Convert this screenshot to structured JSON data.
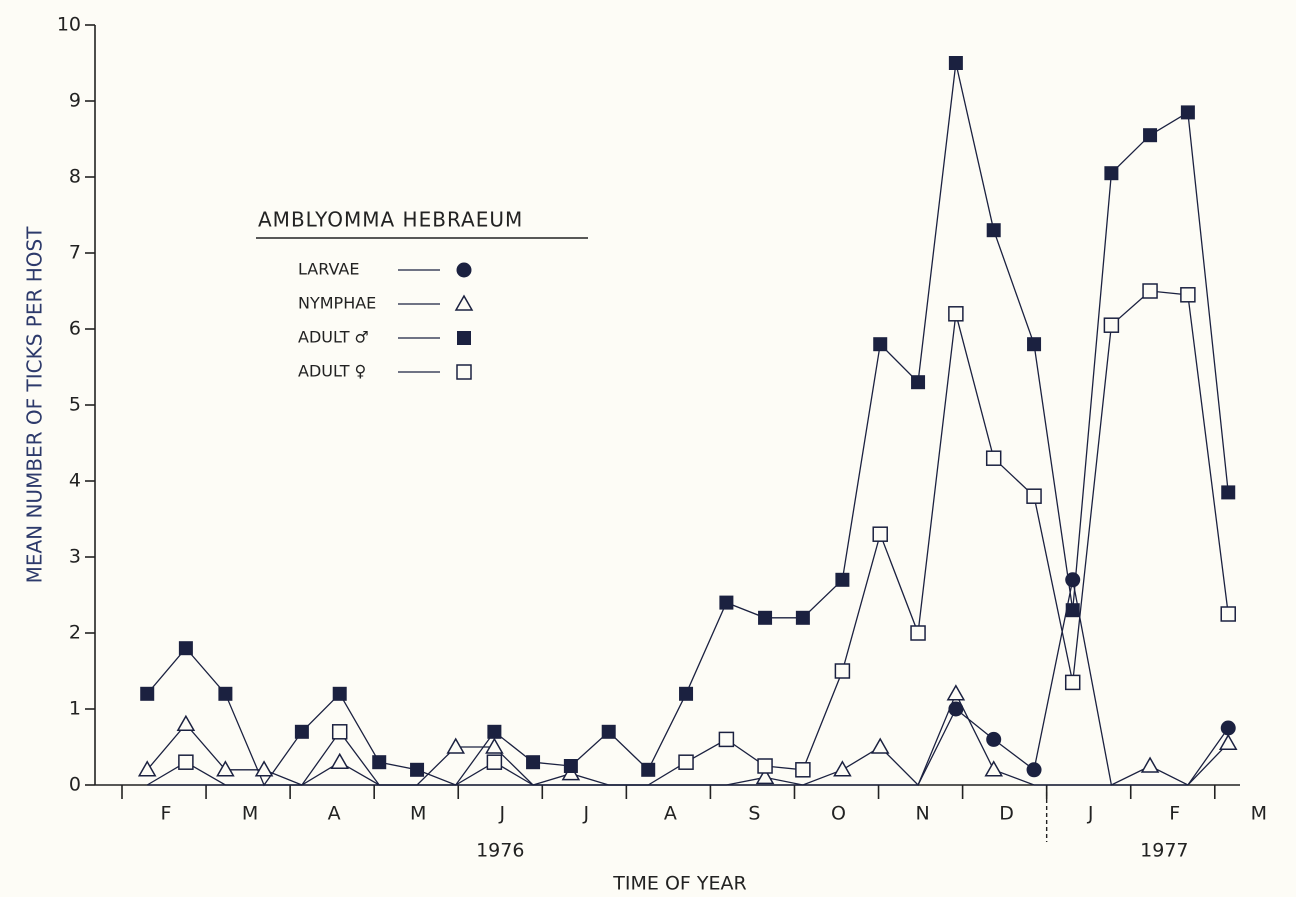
{
  "chart_data": {
    "type": "line",
    "ylabel": "MEAN NUMBER OF TICKS PER HOST",
    "xlabel": "TIME OF YEAR",
    "legend_title": "AMBLYOMMA  HEBRAEUM",
    "categories": [
      "F",
      "M",
      "A",
      "M",
      "J",
      "J",
      "A",
      "S",
      "O",
      "N",
      "D",
      "J",
      "F",
      "M"
    ],
    "year_labels": [
      "1976",
      "1977"
    ],
    "x": [
      0.3,
      0.76,
      1.23,
      1.69,
      2.14,
      2.59,
      3.06,
      3.51,
      3.97,
      4.43,
      4.89,
      5.34,
      5.79,
      6.26,
      6.71,
      7.19,
      7.65,
      8.1,
      8.57,
      9.02,
      9.47,
      9.92,
      10.37,
      10.85,
      11.31,
      11.77,
      12.23,
      12.68,
      13.16
    ],
    "xlim": [
      0,
      13.3
    ],
    "xticks": [
      0,
      1,
      2,
      3,
      4,
      5,
      6,
      7,
      8,
      9,
      10,
      11,
      12,
      13
    ],
    "ylim": [
      0,
      10
    ],
    "yticks": [
      0,
      1,
      2,
      3,
      4,
      5,
      6,
      7,
      8,
      9,
      10
    ],
    "series": [
      {
        "name": "LARVAE",
        "marker": "circle",
        "color": "#1b2140",
        "values": [
          0,
          0,
          0,
          0,
          0,
          0,
          0,
          0,
          0,
          0,
          0,
          0,
          0,
          0,
          0,
          0,
          0,
          0,
          0,
          0,
          0,
          1.0,
          0.6,
          0.2,
          2.7,
          0,
          0,
          0,
          0.75
        ]
      },
      {
        "name": "NYMPHAE",
        "marker": "triangle",
        "color": "#1b2140",
        "values": [
          0.2,
          0.8,
          0.2,
          0.2,
          0,
          0.3,
          0,
          0,
          0.5,
          0.5,
          0,
          0.15,
          0,
          0,
          0,
          0,
          0.1,
          0,
          0.2,
          0.5,
          0,
          1.2,
          0.2,
          0,
          0,
          0,
          0.25,
          0,
          0.55
        ]
      },
      {
        "name": "ADULT ♂",
        "marker": "square",
        "color": "#1b2140",
        "values": [
          1.2,
          1.8,
          1.2,
          0,
          0.7,
          1.2,
          0.3,
          0.2,
          0,
          0.7,
          0.3,
          0.25,
          0.7,
          0.2,
          1.2,
          2.4,
          2.2,
          2.2,
          2.7,
          5.8,
          5.3,
          9.5,
          7.3,
          5.8,
          2.3,
          8.05,
          8.55,
          8.85,
          3.85
        ]
      },
      {
        "name": "ADULT ♀",
        "marker": "open-square",
        "color": "#1b2140",
        "values": [
          0,
          0.3,
          0,
          0,
          0,
          0.7,
          0,
          0,
          0,
          0.3,
          0,
          0,
          0,
          0,
          0.3,
          0.6,
          0.25,
          0.2,
          1.5,
          3.3,
          2.0,
          6.2,
          4.3,
          3.8,
          1.35,
          6.05,
          6.5,
          6.45,
          2.25
        ]
      }
    ]
  }
}
